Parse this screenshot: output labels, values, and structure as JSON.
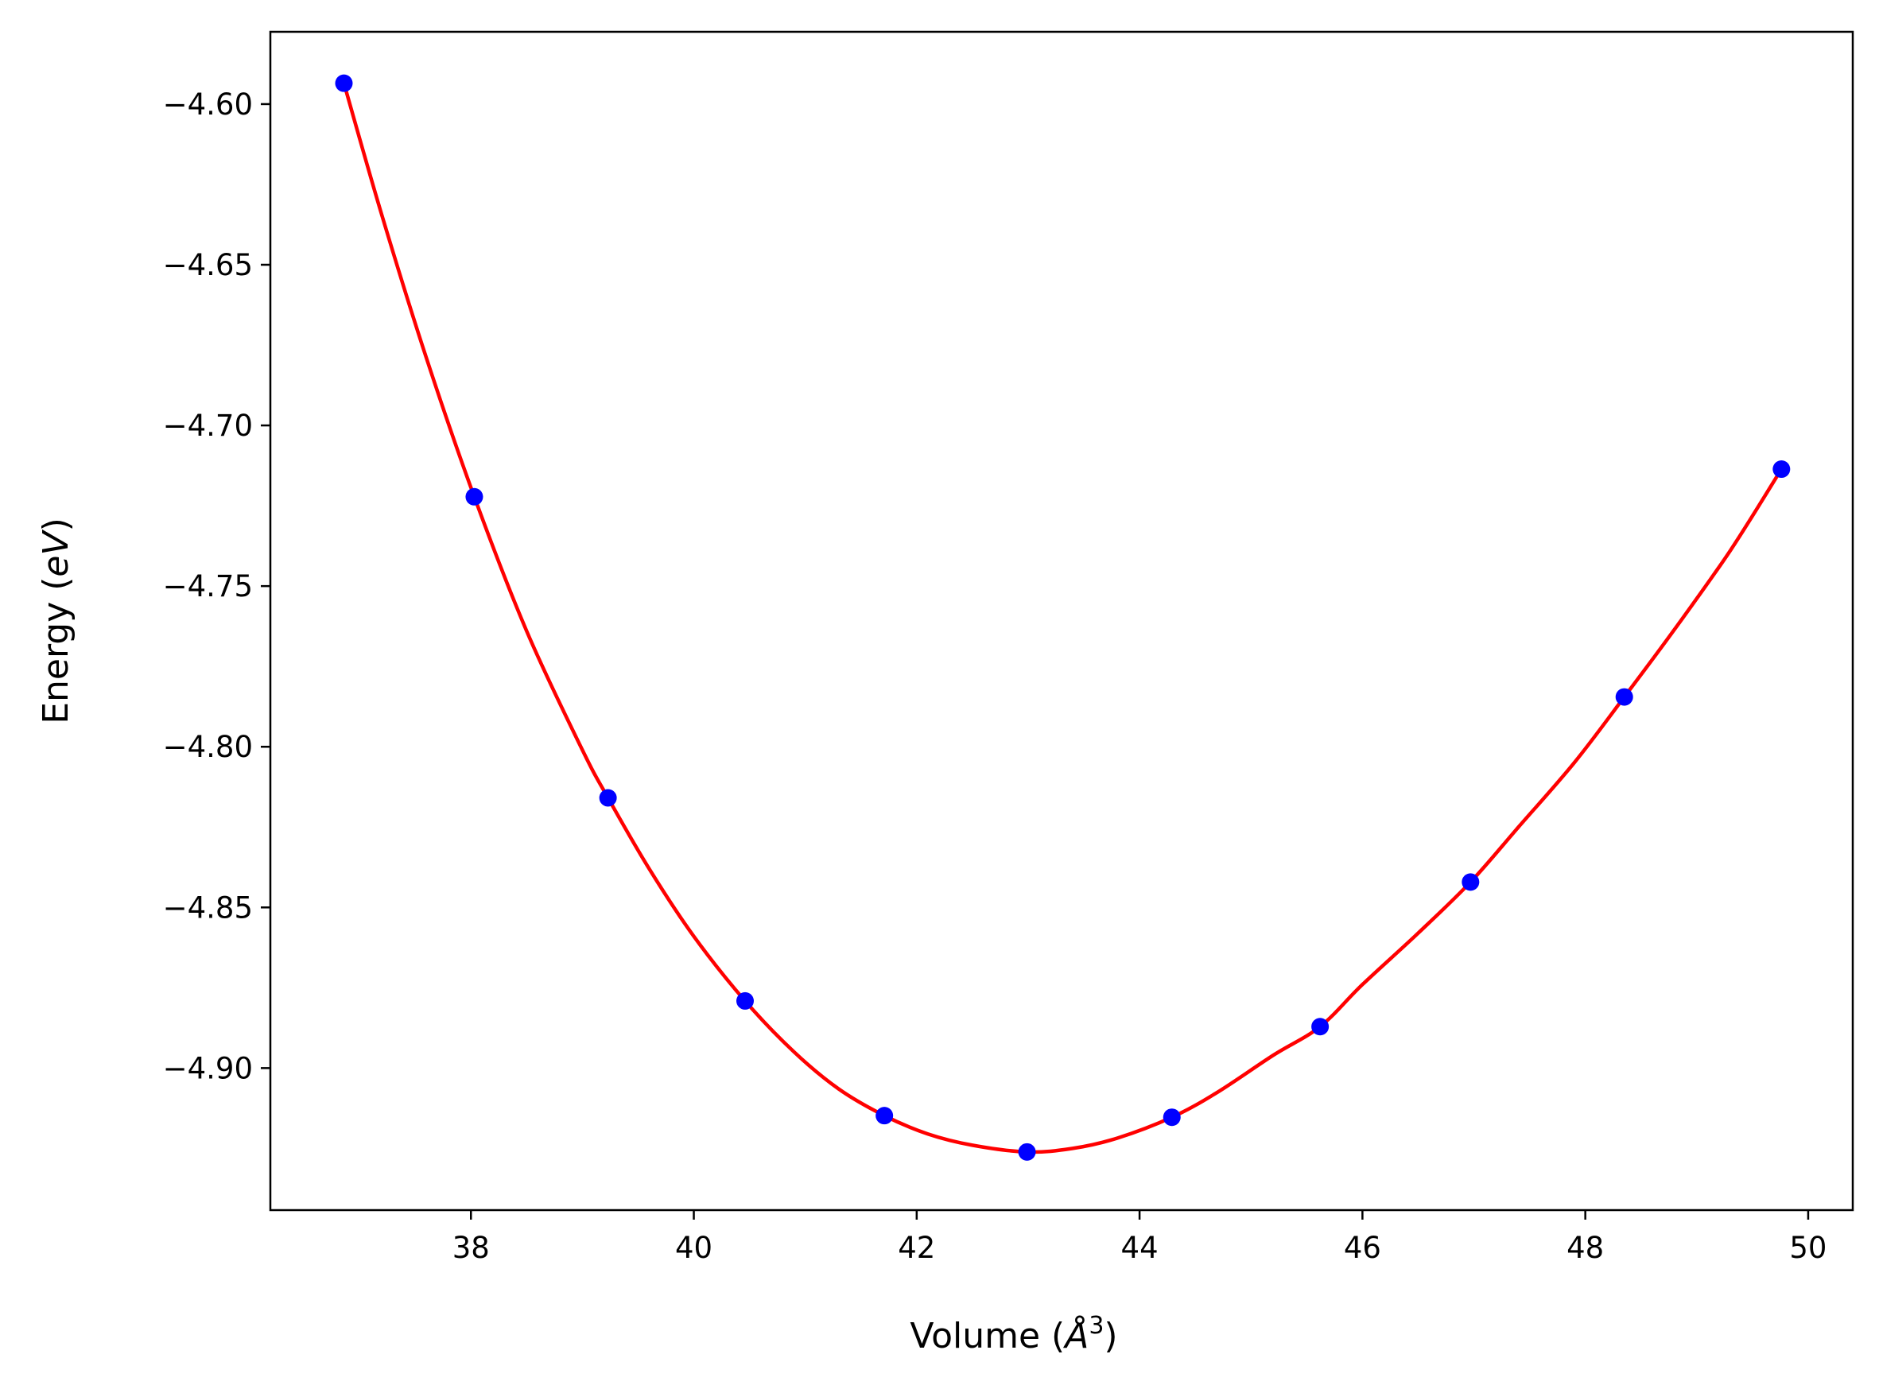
{
  "chart_data": {
    "type": "line",
    "title": "",
    "xlabel_text": "Volume (",
    "xlabel_symbol": "Å",
    "xlabel_sup": "3",
    "xlabel_close": ")",
    "ylabel_text": "Energy (",
    "ylabel_symbol": "eV",
    "ylabel_close": ")",
    "xlim": [
      36.2,
      50.4
    ],
    "ylim": [
      -4.9442,
      -4.5775
    ],
    "x_ticks": [
      38,
      40,
      42,
      44,
      46,
      48,
      50
    ],
    "x_tick_labels": [
      "38",
      "40",
      "42",
      "44",
      "46",
      "48",
      "50"
    ],
    "y_ticks": [
      -4.6,
      -4.65,
      -4.7,
      -4.75,
      -4.8,
      -4.85,
      -4.9
    ],
    "y_tick_labels": [
      "−4.60",
      "−4.65",
      "−4.70",
      "−4.75",
      "−4.80",
      "−4.85",
      "−4.90"
    ],
    "grid": false,
    "series": [
      {
        "kind": "scatter",
        "color": "#0000ff",
        "x": [
          36.86,
          38.03,
          39.23,
          40.46,
          41.71,
          42.99,
          44.29,
          45.62,
          46.97,
          48.35,
          49.76
        ],
        "y": [
          -4.5935,
          -4.7222,
          -4.8159,
          -4.8791,
          -4.9148,
          -4.9261,
          -4.9153,
          -4.8871,
          -4.8421,
          -4.7845,
          -4.7136
        ]
      },
      {
        "kind": "fit-curve",
        "color": "#ff0000",
        "x": [
          36.86,
          37.2,
          37.6,
          38.03,
          38.5,
          39.0,
          39.23,
          39.6,
          40.0,
          40.46,
          40.9,
          41.3,
          41.71,
          42.1,
          42.5,
          42.99,
          43.4,
          43.8,
          44.29,
          44.7,
          45.2,
          45.62,
          46.0,
          46.5,
          46.97,
          47.4,
          47.9,
          48.35,
          48.8,
          49.3,
          49.76
        ],
        "y": [
          -4.5935,
          -4.6345,
          -4.679,
          -4.7222,
          -4.764,
          -4.801,
          -4.8159,
          -4.838,
          -4.859,
          -4.8791,
          -4.895,
          -4.9065,
          -4.9148,
          -4.9205,
          -4.924,
          -4.9261,
          -4.925,
          -4.9218,
          -4.9153,
          -4.9075,
          -4.896,
          -4.8871,
          -4.874,
          -4.858,
          -4.8421,
          -4.825,
          -4.805,
          -4.7845,
          -4.7635,
          -4.739,
          -4.7136
        ]
      }
    ]
  }
}
